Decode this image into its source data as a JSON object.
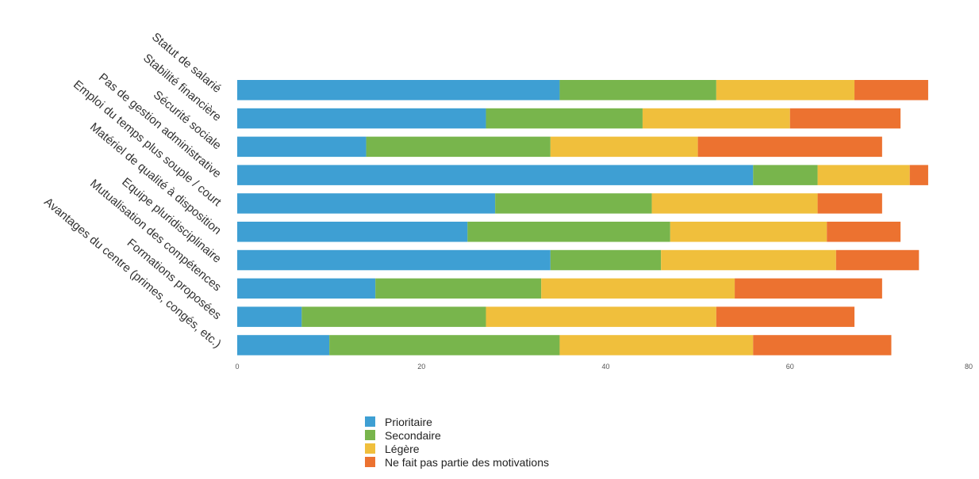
{
  "chart_data": {
    "type": "bar",
    "orientation": "horizontal",
    "stacked": true,
    "categories": [
      "Statut de salarié",
      "Stabilité financière",
      "Sécurité sociale",
      "Pas de gestion administrative",
      "Emploi du temps plus souple / court",
      "Matériel de qualité à disposition",
      "Equipe pluridisciplinaire",
      "Mutualisation des compétences",
      "Formations proposées",
      "Avantages du centre (primes, congés, etc.)"
    ],
    "series": [
      {
        "name": "Prioritaire",
        "color": "#3e9fd3",
        "values": [
          35,
          27,
          14,
          56,
          28,
          25,
          34,
          15,
          7,
          10
        ]
      },
      {
        "name": "Secondaire",
        "color": "#78b54c",
        "values": [
          17,
          17,
          20,
          7,
          17,
          22,
          12,
          18,
          20,
          25
        ]
      },
      {
        "name": "Légère",
        "color": "#f0bf3c",
        "values": [
          15,
          16,
          16,
          10,
          18,
          17,
          19,
          21,
          25,
          21
        ]
      },
      {
        "name": "Ne fait pas partie des motivations",
        "color": "#ec7230",
        "values": [
          8,
          12,
          20,
          2,
          7,
          8,
          9,
          16,
          15,
          15
        ]
      }
    ],
    "xlim": [
      0,
      80
    ],
    "xticks": [
      0,
      20,
      40,
      60,
      80
    ],
    "grid": false,
    "legend_position": "bottom"
  }
}
